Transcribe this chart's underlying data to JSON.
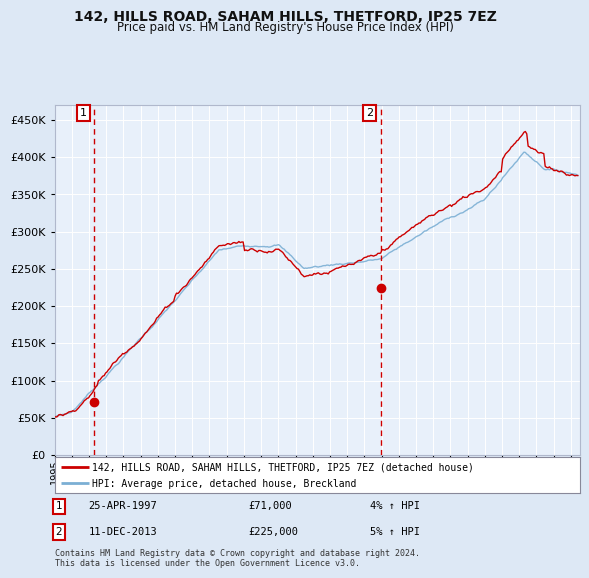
{
  "title": "142, HILLS ROAD, SAHAM HILLS, THETFORD, IP25 7EZ",
  "subtitle": "Price paid vs. HM Land Registry's House Price Index (HPI)",
  "legend_line1": "142, HILLS ROAD, SAHAM HILLS, THETFORD, IP25 7EZ (detached house)",
  "legend_line2": "HPI: Average price, detached house, Breckland",
  "footnote": "Contains HM Land Registry data © Crown copyright and database right 2024.\nThis data is licensed under the Open Government Licence v3.0.",
  "sale1_date": "25-APR-1997",
  "sale1_price": "£71,000",
  "sale1_hpi": "4% ↑ HPI",
  "sale1_year": 1997.32,
  "sale1_value": 71000,
  "sale2_date": "11-DEC-2013",
  "sale2_price": "£225,000",
  "sale2_hpi": "5% ↑ HPI",
  "sale2_year": 2013.95,
  "sale2_value": 225000,
  "hpi_color": "#7bafd4",
  "price_color": "#cc0000",
  "bg_color": "#dde8f5",
  "plot_bg": "#e8f0fa",
  "grid_color": "#ffffff",
  "ylim": [
    0,
    470000
  ],
  "yticks": [
    0,
    50000,
    100000,
    150000,
    200000,
    250000,
    300000,
    350000,
    400000,
    450000
  ],
  "xlim_start": 1995.0,
  "xlim_end": 2025.5
}
